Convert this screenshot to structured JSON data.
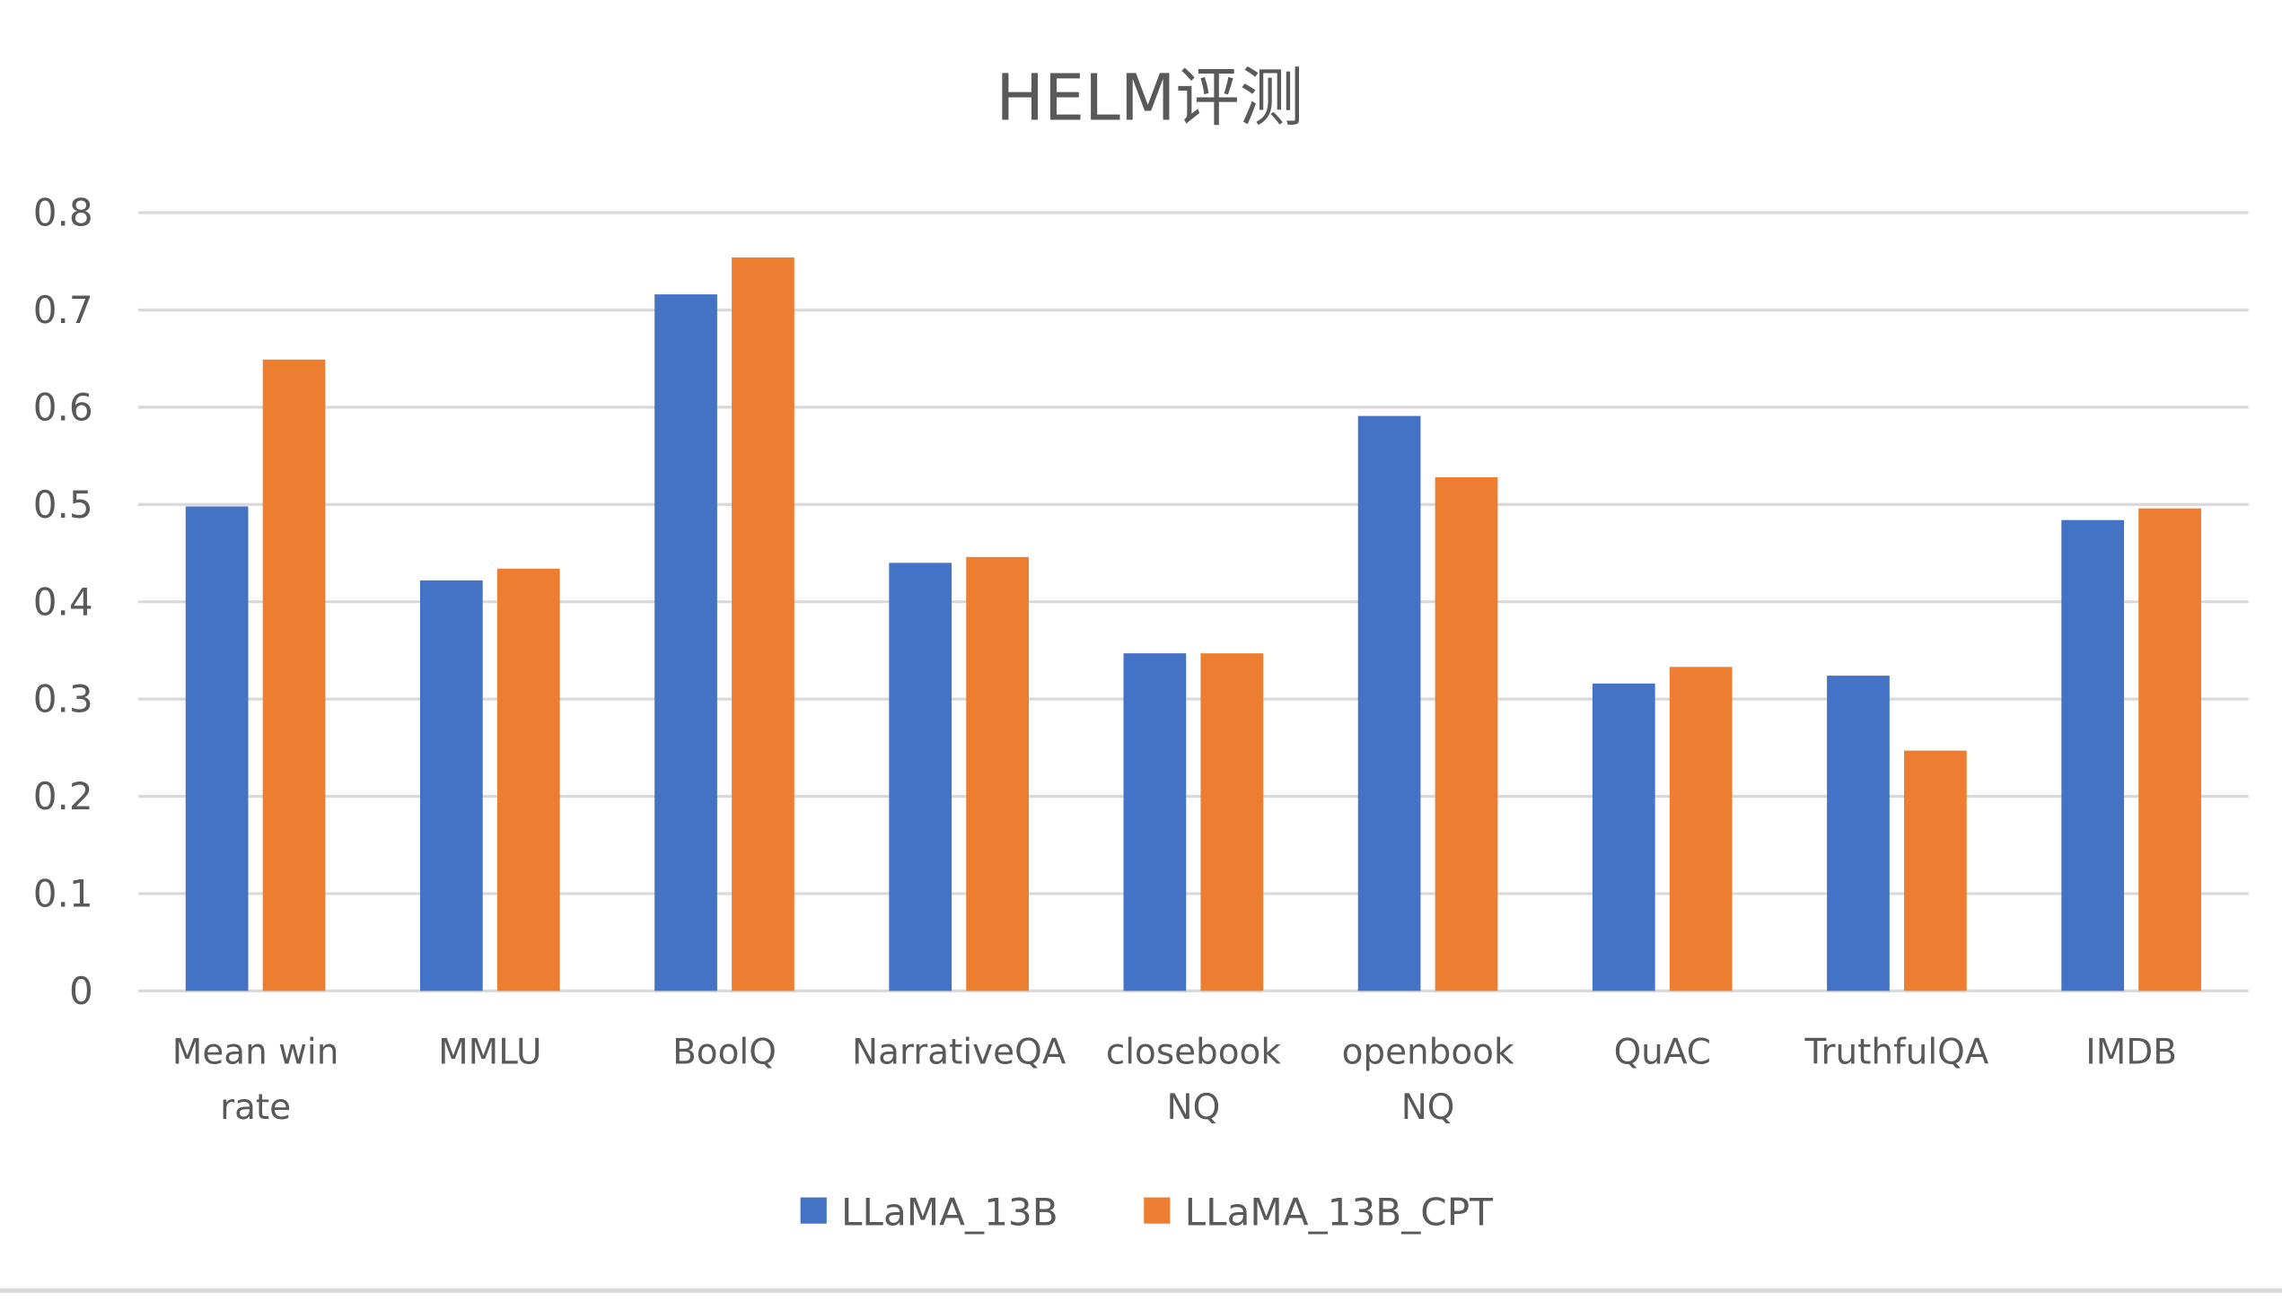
{
  "chart_data": {
    "type": "bar",
    "title": "HELM评测",
    "xlabel": "",
    "ylabel": "",
    "ylim": [
      0,
      0.8
    ],
    "yticks": [
      "0",
      "0.1",
      "0.2",
      "0.3",
      "0.4",
      "0.5",
      "0.6",
      "0.7",
      "0.8"
    ],
    "grid": true,
    "legend_position": "bottom",
    "categories": [
      [
        "Mean win",
        "rate"
      ],
      [
        "MMLU"
      ],
      [
        "BoolQ"
      ],
      [
        "NarrativeQA"
      ],
      [
        "closebook",
        "NQ"
      ],
      [
        "openbook",
        "NQ"
      ],
      [
        "QuAC"
      ],
      [
        "TruthfulQA"
      ],
      [
        "IMDB"
      ]
    ],
    "series": [
      {
        "name": "LLaMA_13B",
        "color": "#4472C4",
        "values": [
          0.498,
          0.422,
          0.716,
          0.44,
          0.347,
          0.591,
          0.316,
          0.324,
          0.484
        ]
      },
      {
        "name": "LLaMA_13B_CPT",
        "color": "#ED7D31",
        "values": [
          0.649,
          0.434,
          0.754,
          0.446,
          0.347,
          0.528,
          0.333,
          0.247,
          0.496
        ]
      }
    ]
  }
}
